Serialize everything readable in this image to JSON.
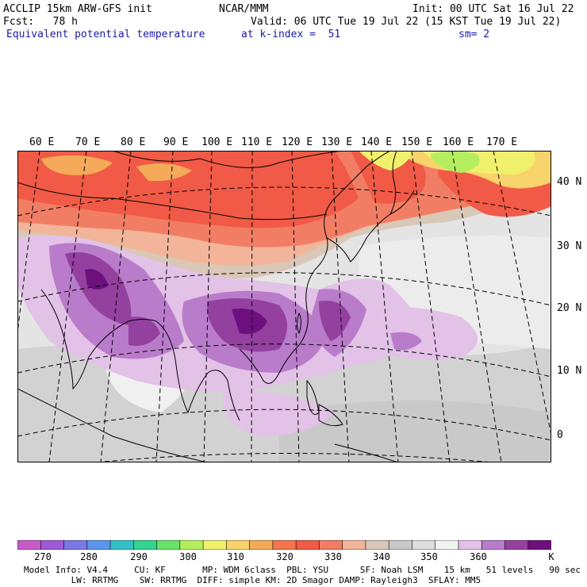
{
  "header": {
    "model": "ACCLIP 15km ARW-GFS init",
    "org": "NCAR/MMM",
    "init": "Init: 00 UTC Sat 16 Jul 22",
    "fcst": "Fcst:   78 h",
    "valid": "Valid: 06 UTC Tue 19 Jul 22 (15 KST Tue 19 Jul 22)",
    "field": "Equivalent potential temperature",
    "level": "at k-index =  51",
    "smooth": "sm= 2"
  },
  "map": {
    "lon_labels": [
      "60 E",
      "70 E",
      "80 E",
      "90 E",
      "100 E",
      "110 E",
      "120 E",
      "130 E",
      "140 E",
      "150 E",
      "160 E",
      "170 E"
    ],
    "lat_labels": [
      "40 N",
      "30 N",
      "20 N",
      "10 N",
      "0"
    ]
  },
  "colorbar": {
    "colors": [
      "#c75cc8",
      "#9c5ad9",
      "#7a78e6",
      "#5c95ee",
      "#34c1c6",
      "#33d58f",
      "#66e26b",
      "#b4ee5e",
      "#f0f06c",
      "#f8d26a",
      "#f4aa59",
      "#f4744e",
      "#f15a46",
      "#f17e64",
      "#f2b59a",
      "#d8c6b8",
      "#c8c8c8",
      "#dedede",
      "#f2f2f2",
      "#e2c2e6",
      "#b97cca",
      "#93409f",
      "#6e0f7e"
    ],
    "ticks": [
      "270",
      "280",
      "290",
      "300",
      "310",
      "320",
      "330",
      "340",
      "350",
      "360"
    ],
    "unit": "K"
  },
  "footer": {
    "line1": "Model Info: V4.4     CU: KF       MP: WDM 6class  PBL: YSU      SF: Noah LSM    15 km   51 levels   90 sec",
    "line2": "         LW: RRTMG    SW: RRTMG  DIFF: simple KM: 2D Smagor DAMP: Rayleigh3  SFLAY: MM5"
  }
}
